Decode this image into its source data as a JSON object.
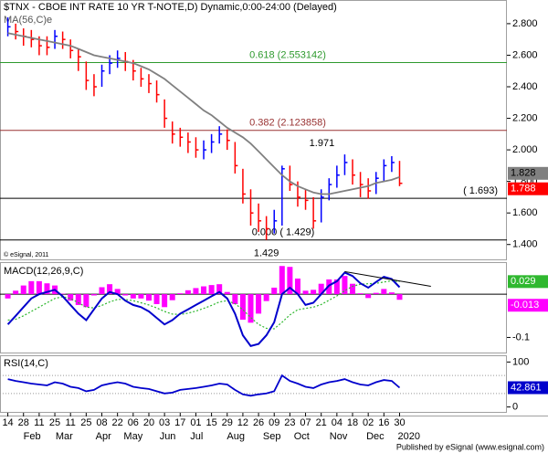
{
  "chart_data": [
    {
      "type": "ohlc",
      "title": "$TNX - CBOE INT RATE 10 YR T-NOTE,D) Dynamic,0:00-24:00 (Delayed)",
      "copyright": "© eSignal, 2011",
      "x": [
        0,
        1,
        2,
        3,
        4,
        5,
        6,
        7,
        8,
        9,
        10,
        11,
        12,
        13,
        14,
        15,
        16,
        17,
        18,
        19,
        20,
        21,
        22,
        23,
        24,
        25,
        26,
        27,
        28,
        29,
        30,
        31,
        32,
        33,
        34,
        35,
        36,
        37,
        38,
        39,
        40,
        41,
        42,
        43,
        44,
        45,
        46,
        47,
        48,
        49,
        50
      ],
      "high": [
        2.84,
        2.8,
        2.77,
        2.76,
        2.72,
        2.72,
        2.76,
        2.75,
        2.7,
        2.64,
        2.56,
        2.48,
        2.54,
        2.6,
        2.63,
        2.62,
        2.57,
        2.52,
        2.48,
        2.44,
        2.32,
        2.18,
        2.14,
        2.11,
        2.08,
        2.06,
        2.1,
        2.15,
        2.13,
        2.05,
        1.88,
        1.75,
        1.66,
        1.58,
        1.62,
        1.9,
        1.9,
        1.8,
        1.75,
        1.7,
        1.75,
        1.82,
        1.9,
        1.971,
        1.94,
        1.86,
        1.82,
        1.86,
        1.94,
        1.96,
        1.93
      ],
      "low": [
        2.72,
        2.7,
        2.66,
        2.65,
        2.6,
        2.6,
        2.64,
        2.64,
        2.58,
        2.5,
        2.38,
        2.34,
        2.4,
        2.48,
        2.52,
        2.5,
        2.44,
        2.4,
        2.36,
        2.3,
        2.14,
        2.04,
        2.02,
        1.98,
        1.95,
        1.94,
        1.98,
        2.04,
        2.0,
        1.85,
        1.66,
        1.52,
        1.48,
        1.429,
        1.47,
        1.52,
        1.74,
        1.64,
        1.62,
        1.5,
        1.54,
        1.68,
        1.76,
        1.84,
        1.78,
        1.7,
        1.69,
        1.72,
        1.8,
        1.86,
        1.77
      ],
      "close": [
        2.78,
        2.75,
        2.72,
        2.7,
        2.66,
        2.65,
        2.72,
        2.7,
        2.63,
        2.59,
        2.44,
        2.4,
        2.5,
        2.55,
        2.58,
        2.56,
        2.5,
        2.45,
        2.42,
        2.35,
        2.2,
        2.1,
        2.08,
        2.05,
        2.0,
        2.0,
        2.05,
        2.1,
        2.06,
        1.9,
        1.72,
        1.6,
        1.55,
        1.5,
        1.55,
        1.88,
        1.78,
        1.7,
        1.68,
        1.55,
        1.7,
        1.78,
        1.84,
        1.92,
        1.84,
        1.78,
        1.74,
        1.82,
        1.9,
        1.92,
        1.788
      ],
      "up_color": "#0000ff",
      "down_color": "#ff0000",
      "ma": {
        "label": "MA(56,C)e",
        "color": "#808080",
        "values": [
          2.74,
          2.73,
          2.72,
          2.71,
          2.7,
          2.69,
          2.68,
          2.67,
          2.66,
          2.64,
          2.62,
          2.6,
          2.59,
          2.58,
          2.57,
          2.56,
          2.55,
          2.53,
          2.51,
          2.48,
          2.45,
          2.41,
          2.37,
          2.33,
          2.29,
          2.25,
          2.22,
          2.18,
          2.14,
          2.11,
          2.08,
          2.04,
          1.99,
          1.94,
          1.89,
          1.84,
          1.8,
          1.77,
          1.75,
          1.73,
          1.72,
          1.72,
          1.73,
          1.74,
          1.75,
          1.76,
          1.77,
          1.79,
          1.8,
          1.81,
          1.828
        ]
      },
      "levels": [
        {
          "value": 2.553142,
          "label": "0.618 (2.553142)",
          "color": "#2e9a2e"
        },
        {
          "value": 2.123858,
          "label": "0.382 (2.123858)",
          "color": "#993333"
        },
        {
          "value": 1.693,
          "label": "( 1.693)",
          "color": "#000000"
        },
        {
          "value": 1.429,
          "label": "0.000 ( 1.429)",
          "color": "#000000"
        }
      ],
      "annotations": [
        {
          "x": 43,
          "value": 1.971,
          "label": "1.971"
        },
        {
          "x": 33,
          "value": 1.429,
          "label": "1.429"
        }
      ],
      "xlim": [
        -1,
        63.7
      ],
      "ylim": [
        1.3,
        2.95
      ],
      "yticks": [
        {
          "value": 1.4,
          "label": "1.400"
        },
        {
          "value": 1.6,
          "label": "1.600"
        },
        {
          "value": 1.8,
          "label": "1.800"
        },
        {
          "value": 2.0,
          "label": "2.000"
        },
        {
          "value": 2.2,
          "label": "2.200"
        },
        {
          "value": 2.4,
          "label": "2.400"
        },
        {
          "value": 2.6,
          "label": "2.600"
        },
        {
          "value": 2.8,
          "label": "2.800"
        }
      ]
    },
    {
      "type": "macd",
      "label": "MACD(12,26,9,C)",
      "macd": {
        "color": "#0000cc",
        "values": [
          -0.07,
          -0.05,
          -0.03,
          -0.01,
          0,
          0.005,
          0.01,
          -0.005,
          -0.025,
          -0.045,
          -0.06,
          -0.035,
          -0.01,
          0.005,
          0,
          -0.015,
          -0.025,
          -0.03,
          -0.04,
          -0.055,
          -0.07,
          -0.06,
          -0.045,
          -0.035,
          -0.025,
          -0.015,
          -0.005,
          0.005,
          -0.01,
          -0.045,
          -0.095,
          -0.12,
          -0.115,
          -0.095,
          -0.065,
          0,
          0.015,
          0,
          -0.025,
          -0.02,
          0,
          0.02,
          0.03,
          0.05,
          0.042,
          0.025,
          0.015,
          0.028,
          0.04,
          0.035,
          0.016
        ]
      },
      "signal": {
        "color": "#2fb82f",
        "values": [
          -0.06,
          -0.058,
          -0.05,
          -0.04,
          -0.03,
          -0.02,
          -0.01,
          -0.006,
          -0.01,
          -0.02,
          -0.03,
          -0.032,
          -0.026,
          -0.018,
          -0.012,
          -0.012,
          -0.015,
          -0.02,
          -0.025,
          -0.032,
          -0.04,
          -0.046,
          -0.047,
          -0.044,
          -0.039,
          -0.033,
          -0.026,
          -0.018,
          -0.015,
          -0.022,
          -0.036,
          -0.054,
          -0.07,
          -0.079,
          -0.08,
          -0.065,
          -0.048,
          -0.036,
          -0.033,
          -0.03,
          -0.024,
          -0.014,
          -0.004,
          0.008,
          0.018,
          0.023,
          0.024,
          0.025,
          0.028,
          0.031,
          0.029
        ]
      },
      "histogram": {
        "color": "#ff00ff",
        "values": [
          -0.01,
          0.008,
          0.02,
          0.03,
          0.03,
          0.025,
          0.02,
          0.001,
          -0.015,
          -0.025,
          -0.03,
          -0.003,
          0.016,
          0.023,
          0.012,
          -0.003,
          -0.01,
          -0.01,
          -0.015,
          -0.023,
          -0.03,
          -0.014,
          0.002,
          0.009,
          0.014,
          0.018,
          0.021,
          0.023,
          0.005,
          -0.023,
          -0.059,
          -0.066,
          -0.045,
          -0.016,
          0.015,
          0.065,
          0.063,
          0.036,
          0.008,
          0.01,
          0.024,
          0.034,
          0.034,
          0.042,
          0.024,
          0.002,
          -0.009,
          0.003,
          0.012,
          0.004,
          -0.013
        ]
      },
      "trendline": {
        "x": [
          43,
          54
        ],
        "y": [
          0.052,
          0.018
        ],
        "color": "#000000"
      },
      "zero_line": true,
      "xlim": [
        -1,
        63.7
      ],
      "ylim": [
        -0.137,
        0.074
      ],
      "yticks": [
        -0.1
      ]
    },
    {
      "type": "rsi",
      "label": "RSI(14,C)",
      "color": "#0000cc",
      "values": [
        62,
        58,
        55,
        52,
        50,
        48,
        55,
        52,
        45,
        42,
        35,
        38,
        48,
        52,
        55,
        52,
        45,
        42,
        40,
        35,
        30,
        32,
        38,
        40,
        42,
        45,
        48,
        52,
        50,
        38,
        28,
        25,
        28,
        30,
        35,
        70,
        58,
        52,
        45,
        42,
        50,
        55,
        58,
        62,
        55,
        50,
        48,
        55,
        60,
        58,
        42.861
      ],
      "guide_levels": [
        30,
        70
      ],
      "xlim": [
        -1,
        63.7
      ],
      "ylim": [
        -13,
        115
      ],
      "yticks": [
        0,
        100
      ],
      "xticks": [
        {
          "value": 0,
          "label": "14"
        },
        {
          "value": 2,
          "label": "28"
        },
        {
          "value": 4,
          "label": "11"
        },
        {
          "value": 6,
          "label": "25"
        },
        {
          "value": 8,
          "label": "11"
        },
        {
          "value": 10,
          "label": "25"
        },
        {
          "value": 12,
          "label": "08"
        },
        {
          "value": 14,
          "label": "22"
        },
        {
          "value": 16,
          "label": "06"
        },
        {
          "value": 18,
          "label": "20"
        },
        {
          "value": 20,
          "label": "03"
        },
        {
          "value": 22,
          "label": "17"
        },
        {
          "value": 24,
          "label": "01"
        },
        {
          "value": 26,
          "label": "15"
        },
        {
          "value": 28,
          "label": "29"
        },
        {
          "value": 30,
          "label": "12"
        },
        {
          "value": 32,
          "label": "26"
        },
        {
          "value": 34,
          "label": "09"
        },
        {
          "value": 36,
          "label": "23"
        },
        {
          "value": 38,
          "label": "07"
        },
        {
          "value": 40,
          "label": "21"
        },
        {
          "value": 42,
          "label": "04"
        },
        {
          "value": 44,
          "label": "18"
        },
        {
          "value": 46,
          "label": "02"
        },
        {
          "value": 48,
          "label": "16"
        },
        {
          "value": 50,
          "label": "30"
        }
      ],
      "month_labels": [
        {
          "value": 3.1,
          "label": "Feb"
        },
        {
          "value": 7.2,
          "label": "Mar"
        },
        {
          "value": 12.2,
          "label": "Apr"
        },
        {
          "value": 16,
          "label": "May"
        },
        {
          "value": 20.4,
          "label": "Jun"
        },
        {
          "value": 24.1,
          "label": "Jul"
        },
        {
          "value": 29.1,
          "label": "Aug"
        },
        {
          "value": 33.7,
          "label": "Sep"
        },
        {
          "value": 37.5,
          "label": "Oct"
        },
        {
          "value": 42.2,
          "label": "Nov"
        },
        {
          "value": 46.9,
          "label": "Dec"
        },
        {
          "value": 51.2,
          "label": "2020"
        }
      ]
    }
  ],
  "footer": "Published by eSignal (www.esignal.com)"
}
